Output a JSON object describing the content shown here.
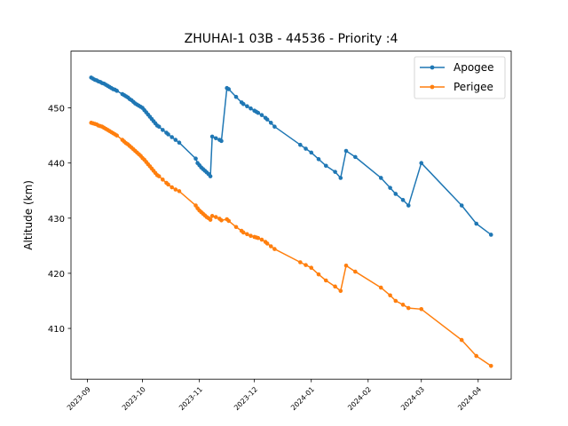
{
  "chart_data": {
    "type": "line",
    "title": "ZHUHAI-1 03B - 44536 - Priority :4",
    "xlabel": "",
    "ylabel": "Altitude (km)",
    "x_type": "date",
    "xlim": [
      "2023-08-23",
      "2024-04-19"
    ],
    "ylim": [
      400.8,
      460.3
    ],
    "x_ticks": [
      "2023-09-01",
      "2023-10-01",
      "2023-11-01",
      "2023-12-01",
      "2024-01-01",
      "2024-02-01",
      "2024-03-01",
      "2024-04-01"
    ],
    "x_tick_labels": [
      "2023-09",
      "2023-10",
      "2023-11",
      "2023-12",
      "2024-01",
      "2024-02",
      "2024-03",
      "2024-04"
    ],
    "y_ticks": [
      410,
      420,
      430,
      440,
      450
    ],
    "y_tick_labels": [
      "410",
      "420",
      "430",
      "440",
      "450"
    ],
    "grid": false,
    "legend_position": "top-right",
    "series": [
      {
        "name": "Apogee",
        "color": "#1f77b4",
        "marker": "circle",
        "points": [
          [
            "2023-09-03",
            455.5
          ],
          [
            "2023-09-04",
            455.3
          ],
          [
            "2023-09-05",
            455.1
          ],
          [
            "2023-09-06",
            455.0
          ],
          [
            "2023-09-07",
            454.8
          ],
          [
            "2023-09-08",
            454.7
          ],
          [
            "2023-09-09",
            454.5
          ],
          [
            "2023-09-10",
            454.4
          ],
          [
            "2023-09-11",
            454.2
          ],
          [
            "2023-09-12",
            454.0
          ],
          [
            "2023-09-13",
            453.8
          ],
          [
            "2023-09-14",
            453.6
          ],
          [
            "2023-09-15",
            453.4
          ],
          [
            "2023-09-16",
            453.3
          ],
          [
            "2023-09-17",
            453.1
          ],
          [
            "2023-09-20",
            452.5
          ],
          [
            "2023-09-21",
            452.3
          ],
          [
            "2023-09-22",
            452.1
          ],
          [
            "2023-09-23",
            451.9
          ],
          [
            "2023-09-24",
            451.6
          ],
          [
            "2023-09-25",
            451.4
          ],
          [
            "2023-09-26",
            451.1
          ],
          [
            "2023-09-27",
            450.8
          ],
          [
            "2023-09-28",
            450.6
          ],
          [
            "2023-09-29",
            450.4
          ],
          [
            "2023-09-30",
            450.2
          ],
          [
            "2023-10-01",
            450.0
          ],
          [
            "2023-10-02",
            449.6
          ],
          [
            "2023-10-03",
            449.2
          ],
          [
            "2023-10-04",
            448.8
          ],
          [
            "2023-10-05",
            448.4
          ],
          [
            "2023-10-06",
            448.0
          ],
          [
            "2023-10-07",
            447.6
          ],
          [
            "2023-10-08",
            447.2
          ],
          [
            "2023-10-09",
            446.8
          ],
          [
            "2023-10-10",
            446.6
          ],
          [
            "2023-10-12",
            446.0
          ],
          [
            "2023-10-14",
            445.5
          ],
          [
            "2023-10-15",
            445.2
          ],
          [
            "2023-10-17",
            444.7
          ],
          [
            "2023-10-19",
            444.2
          ],
          [
            "2023-10-21",
            443.7
          ],
          [
            "2023-10-30",
            440.8
          ],
          [
            "2023-10-31",
            440.0
          ],
          [
            "2023-11-01",
            439.6
          ],
          [
            "2023-11-02",
            439.2
          ],
          [
            "2023-11-03",
            438.9
          ],
          [
            "2023-11-04",
            438.6
          ],
          [
            "2023-11-05",
            438.3
          ],
          [
            "2023-11-06",
            438.0
          ],
          [
            "2023-11-07",
            437.6
          ],
          [
            "2023-11-08",
            444.8
          ],
          [
            "2023-11-10",
            444.5
          ],
          [
            "2023-11-12",
            444.2
          ],
          [
            "2023-11-13",
            444.0
          ],
          [
            "2023-11-16",
            453.6
          ],
          [
            "2023-11-17",
            453.4
          ],
          [
            "2023-11-21",
            452.0
          ],
          [
            "2023-11-24",
            451.0
          ],
          [
            "2023-11-25",
            450.7
          ],
          [
            "2023-11-27",
            450.3
          ],
          [
            "2023-11-29",
            449.9
          ],
          [
            "2023-12-01",
            449.5
          ],
          [
            "2023-12-02",
            449.3
          ],
          [
            "2023-12-03",
            449.1
          ],
          [
            "2023-12-05",
            448.7
          ],
          [
            "2023-12-07",
            448.2
          ],
          [
            "2023-12-08",
            447.9
          ],
          [
            "2023-12-10",
            447.3
          ],
          [
            "2023-12-12",
            446.6
          ],
          [
            "2023-12-26",
            443.3
          ],
          [
            "2023-12-29",
            442.6
          ],
          [
            "2024-01-01",
            441.9
          ],
          [
            "2024-01-05",
            440.7
          ],
          [
            "2024-01-09",
            439.5
          ],
          [
            "2024-01-14",
            438.4
          ],
          [
            "2024-01-17",
            437.3
          ],
          [
            "2024-01-20",
            442.2
          ],
          [
            "2024-01-25",
            441.1
          ],
          [
            "2024-02-08",
            437.3
          ],
          [
            "2024-02-13",
            435.5
          ],
          [
            "2024-02-16",
            434.4
          ],
          [
            "2024-02-20",
            433.3
          ],
          [
            "2024-02-23",
            432.3
          ],
          [
            "2024-03-01",
            440.0
          ],
          [
            "2024-03-23",
            432.3
          ],
          [
            "2024-03-31",
            429.0
          ],
          [
            "2024-04-08",
            427.0
          ]
        ]
      },
      {
        "name": "Perigee",
        "color": "#ff7f0e",
        "marker": "circle",
        "points": [
          [
            "2023-09-03",
            447.3
          ],
          [
            "2023-09-04",
            447.2
          ],
          [
            "2023-09-05",
            447.1
          ],
          [
            "2023-09-06",
            447.0
          ],
          [
            "2023-09-07",
            446.8
          ],
          [
            "2023-09-08",
            446.7
          ],
          [
            "2023-09-09",
            446.6
          ],
          [
            "2023-09-10",
            446.4
          ],
          [
            "2023-09-11",
            446.2
          ],
          [
            "2023-09-12",
            446.0
          ],
          [
            "2023-09-13",
            445.8
          ],
          [
            "2023-09-14",
            445.6
          ],
          [
            "2023-09-15",
            445.4
          ],
          [
            "2023-09-16",
            445.2
          ],
          [
            "2023-09-17",
            445.0
          ],
          [
            "2023-09-20",
            444.2
          ],
          [
            "2023-09-21",
            443.9
          ],
          [
            "2023-09-22",
            443.6
          ],
          [
            "2023-09-23",
            443.4
          ],
          [
            "2023-09-24",
            443.1
          ],
          [
            "2023-09-25",
            442.8
          ],
          [
            "2023-09-26",
            442.5
          ],
          [
            "2023-09-27",
            442.2
          ],
          [
            "2023-09-28",
            441.9
          ],
          [
            "2023-09-29",
            441.6
          ],
          [
            "2023-09-30",
            441.3
          ],
          [
            "2023-10-01",
            440.9
          ],
          [
            "2023-10-02",
            440.6
          ],
          [
            "2023-10-03",
            440.2
          ],
          [
            "2023-10-04",
            439.8
          ],
          [
            "2023-10-05",
            439.4
          ],
          [
            "2023-10-06",
            439.0
          ],
          [
            "2023-10-07",
            438.6
          ],
          [
            "2023-10-08",
            438.2
          ],
          [
            "2023-10-09",
            437.8
          ],
          [
            "2023-10-10",
            437.6
          ],
          [
            "2023-10-12",
            437.0
          ],
          [
            "2023-10-14",
            436.4
          ],
          [
            "2023-10-15",
            436.1
          ],
          [
            "2023-10-17",
            435.6
          ],
          [
            "2023-10-19",
            435.2
          ],
          [
            "2023-10-21",
            434.9
          ],
          [
            "2023-10-30",
            432.3
          ],
          [
            "2023-10-31",
            431.8
          ],
          [
            "2023-11-01",
            431.4
          ],
          [
            "2023-11-02",
            431.1
          ],
          [
            "2023-11-03",
            430.8
          ],
          [
            "2023-11-04",
            430.5
          ],
          [
            "2023-11-05",
            430.2
          ],
          [
            "2023-11-06",
            430.0
          ],
          [
            "2023-11-07",
            429.7
          ],
          [
            "2023-11-08",
            430.4
          ],
          [
            "2023-11-10",
            430.2
          ],
          [
            "2023-11-12",
            429.9
          ],
          [
            "2023-11-13",
            429.6
          ],
          [
            "2023-11-16",
            429.8
          ],
          [
            "2023-11-17",
            429.5
          ],
          [
            "2023-11-21",
            428.4
          ],
          [
            "2023-11-24",
            427.7
          ],
          [
            "2023-11-25",
            427.4
          ],
          [
            "2023-11-27",
            427.1
          ],
          [
            "2023-11-29",
            426.8
          ],
          [
            "2023-12-01",
            426.6
          ],
          [
            "2023-12-02",
            426.5
          ],
          [
            "2023-12-03",
            426.4
          ],
          [
            "2023-12-05",
            426.1
          ],
          [
            "2023-12-07",
            425.7
          ],
          [
            "2023-12-08",
            425.4
          ],
          [
            "2023-12-10",
            424.9
          ],
          [
            "2023-12-12",
            424.4
          ],
          [
            "2023-12-26",
            422.0
          ],
          [
            "2023-12-29",
            421.5
          ],
          [
            "2024-01-01",
            421.0
          ],
          [
            "2024-01-05",
            419.8
          ],
          [
            "2024-01-09",
            418.7
          ],
          [
            "2024-01-14",
            417.6
          ],
          [
            "2024-01-17",
            416.8
          ],
          [
            "2024-01-20",
            421.4
          ],
          [
            "2024-01-25",
            420.3
          ],
          [
            "2024-02-08",
            417.4
          ],
          [
            "2024-02-13",
            416.0
          ],
          [
            "2024-02-16",
            415.0
          ],
          [
            "2024-02-20",
            414.3
          ],
          [
            "2024-02-23",
            413.7
          ],
          [
            "2024-03-01",
            413.5
          ],
          [
            "2024-03-23",
            407.9
          ],
          [
            "2024-03-31",
            405.0
          ],
          [
            "2024-04-08",
            403.2
          ]
        ]
      }
    ]
  }
}
